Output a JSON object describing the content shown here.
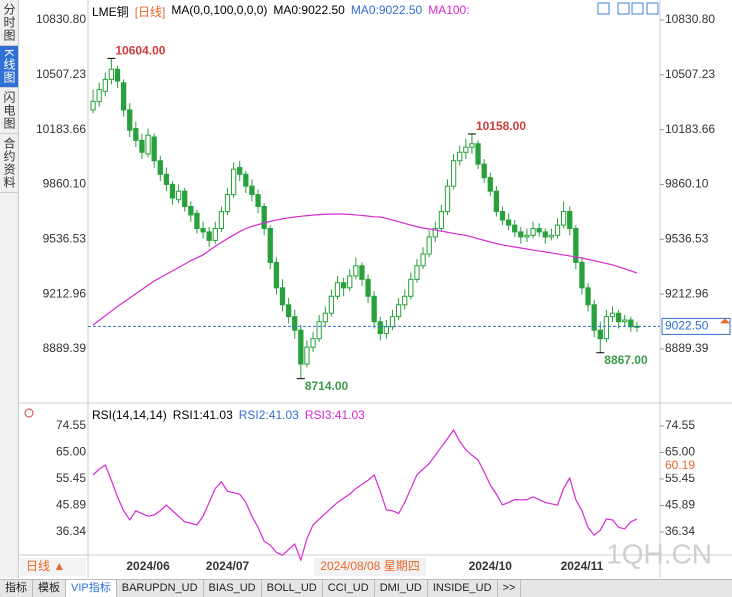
{
  "header": {
    "symbol": "LME铜",
    "period": "[日线]",
    "ma_params": "MA(0,0,100,0,0,0)",
    "ma_a": "MA0:9022.50",
    "ma_b": "MA0:9022.50",
    "ma_c": "MA100:"
  },
  "sidebar": [
    "分时图",
    "K线图",
    "闪电图",
    "合约资料"
  ],
  "chart_data": [
    {
      "type": "candlestick",
      "ylim": [
        8588,
        10919
      ],
      "yticks": [
        {
          "value": 10830.8,
          "label": "10830.80"
        },
        {
          "value": 10507.23,
          "label": "10507.23"
        },
        {
          "value": 10183.66,
          "label": "10183.66"
        },
        {
          "value": 9860.1,
          "label": "9860.10"
        },
        {
          "value": 9536.53,
          "label": "9536.53"
        },
        {
          "value": 9212.96,
          "label": "9212.96"
        },
        {
          "value": 8889.39,
          "label": "8889.39"
        }
      ],
      "up_color": "#28a03c",
      "down_color": "#28a03c",
      "candles": [
        [
          10300,
          10420,
          10280,
          10350
        ],
        [
          10350,
          10460,
          10320,
          10420
        ],
        [
          10410,
          10520,
          10380,
          10480
        ],
        [
          10480,
          10604,
          10450,
          10540
        ],
        [
          10540,
          10560,
          10430,
          10470
        ],
        [
          10460,
          10480,
          10260,
          10300
        ],
        [
          10300,
          10340,
          10140,
          10180
        ],
        [
          10190,
          10230,
          10080,
          10120
        ],
        [
          10120,
          10160,
          10010,
          10050
        ],
        [
          10040,
          10190,
          10020,
          10150
        ],
        [
          10140,
          10160,
          9960,
          10000
        ],
        [
          10000,
          10030,
          9880,
          9920
        ],
        [
          9920,
          9960,
          9820,
          9860
        ],
        [
          9860,
          9880,
          9740,
          9780
        ],
        [
          9770,
          9860,
          9750,
          9820
        ],
        [
          9820,
          9840,
          9700,
          9730
        ],
        [
          9730,
          9760,
          9640,
          9680
        ],
        [
          9690,
          9710,
          9570,
          9600
        ],
        [
          9600,
          9640,
          9540,
          9580
        ],
        [
          9580,
          9610,
          9490,
          9530
        ],
        [
          9530,
          9640,
          9510,
          9600
        ],
        [
          9600,
          9730,
          9580,
          9700
        ],
        [
          9700,
          9840,
          9680,
          9800
        ],
        [
          9800,
          9990,
          9780,
          9950
        ],
        [
          9960,
          10000,
          9880,
          9920
        ],
        [
          9920,
          9940,
          9810,
          9850
        ],
        [
          9850,
          9890,
          9760,
          9800
        ],
        [
          9800,
          9830,
          9690,
          9730
        ],
        [
          9730,
          9750,
          9560,
          9600
        ],
        [
          9600,
          9620,
          9360,
          9400
        ],
        [
          9400,
          9430,
          9210,
          9250
        ],
        [
          9250,
          9300,
          9110,
          9150
        ],
        [
          9150,
          9190,
          9040,
          9080
        ],
        [
          9080,
          9120,
          8950,
          9000
        ],
        [
          9000,
          9030,
          8714,
          8800
        ],
        [
          8800,
          8940,
          8780,
          8900
        ],
        [
          8900,
          8990,
          8870,
          8950
        ],
        [
          8950,
          9090,
          8930,
          9050
        ],
        [
          9050,
          9140,
          9020,
          9100
        ],
        [
          9100,
          9240,
          9080,
          9200
        ],
        [
          9200,
          9320,
          9180,
          9280
        ],
        [
          9280,
          9310,
          9200,
          9250
        ],
        [
          9250,
          9360,
          9230,
          9320
        ],
        [
          9320,
          9430,
          9300,
          9380
        ],
        [
          9380,
          9400,
          9260,
          9300
        ],
        [
          9300,
          9330,
          9160,
          9200
        ],
        [
          9200,
          9230,
          9010,
          9050
        ],
        [
          9050,
          9080,
          8940,
          8980
        ],
        [
          8980,
          9060,
          8950,
          9020
        ],
        [
          9020,
          9120,
          9000,
          9080
        ],
        [
          9080,
          9190,
          9060,
          9150
        ],
        [
          9150,
          9240,
          9120,
          9200
        ],
        [
          9200,
          9340,
          9180,
          9300
        ],
        [
          9300,
          9420,
          9280,
          9380
        ],
        [
          9380,
          9490,
          9360,
          9450
        ],
        [
          9450,
          9590,
          9430,
          9550
        ],
        [
          9550,
          9640,
          9520,
          9600
        ],
        [
          9600,
          9740,
          9580,
          9700
        ],
        [
          9700,
          9890,
          9680,
          9850
        ],
        [
          9850,
          10040,
          9830,
          10000
        ],
        [
          10000,
          10090,
          9970,
          10050
        ],
        [
          10050,
          10130,
          10010,
          10080
        ],
        [
          10080,
          10158,
          10040,
          10100
        ],
        [
          10100,
          10120,
          9950,
          9980
        ],
        [
          9980,
          10010,
          9870,
          9900
        ],
        [
          9900,
          9930,
          9790,
          9820
        ],
        [
          9820,
          9850,
          9670,
          9700
        ],
        [
          9700,
          9730,
          9620,
          9650
        ],
        [
          9650,
          9690,
          9590,
          9620
        ],
        [
          9620,
          9650,
          9550,
          9580
        ],
        [
          9580,
          9610,
          9510,
          9550
        ],
        [
          9550,
          9600,
          9520,
          9560
        ],
        [
          9560,
          9640,
          9540,
          9600
        ],
        [
          9600,
          9630,
          9550,
          9580
        ],
        [
          9580,
          9600,
          9510,
          9550
        ],
        [
          9550,
          9600,
          9530,
          9560
        ],
        [
          9560,
          9660,
          9540,
          9620
        ],
        [
          9620,
          9760,
          9600,
          9700
        ],
        [
          9700,
          9730,
          9560,
          9600
        ],
        [
          9600,
          9620,
          9360,
          9400
        ],
        [
          9400,
          9430,
          9210,
          9250
        ],
        [
          9250,
          9280,
          9110,
          9150
        ],
        [
          9150,
          9180,
          8960,
          9000
        ],
        [
          9000,
          9050,
          8867,
          8950
        ],
        [
          8950,
          9120,
          8930,
          9080
        ],
        [
          9080,
          9140,
          9050,
          9100
        ],
        [
          9100,
          9120,
          9010,
          9050
        ],
        [
          9050,
          9090,
          9020,
          9060
        ],
        [
          9060,
          9080,
          8990,
          9020
        ],
        [
          9020,
          9050,
          8990,
          9022.5
        ]
      ],
      "series": [
        {
          "color": "#d62ad0",
          "values": [
            9030,
            9058,
            9085,
            9112,
            9140,
            9165,
            9190,
            9215,
            9240,
            9265,
            9290,
            9310,
            9330,
            9350,
            9370,
            9390,
            9410,
            9427,
            9444,
            9470,
            9495,
            9518,
            9540,
            9562,
            9582,
            9600,
            9612,
            9623,
            9633,
            9642,
            9650,
            9657,
            9663,
            9668,
            9672,
            9676,
            9679,
            9682,
            9684,
            9685,
            9686,
            9685,
            9683,
            9680,
            9677,
            9673,
            9669,
            9668,
            9660,
            9650,
            9640,
            9630,
            9620,
            9611,
            9603,
            9597,
            9591,
            9585,
            9578,
            9571,
            9565,
            9560,
            9550,
            9540,
            9530,
            9520,
            9511,
            9503,
            9497,
            9491,
            9485,
            9479,
            9473,
            9467,
            9462,
            9456,
            9450,
            9444,
            9438,
            9432,
            9426,
            9418,
            9410,
            9402,
            9394,
            9385,
            9374,
            9362,
            9350,
            9338
          ]
        }
      ],
      "annotations": [
        {
          "text": "10604.00",
          "value": 10604,
          "color": "#d23b3b"
        },
        {
          "text": "10158.00",
          "value": 10158,
          "color": "#d23b3b"
        },
        {
          "text": "8714.00",
          "value": 8714,
          "color": "#3a9a48"
        },
        {
          "text": "8867.00",
          "value": 8867,
          "color": "#3a9a48"
        }
      ],
      "last": {
        "value": 9022.5,
        "label": "9022.50",
        "color": "#2f6fd6"
      }
    },
    {
      "type": "line",
      "title": "RSI(14,14,14)",
      "legend": [
        "RSI1:41.03",
        "RSI2:41.03",
        "RSI3:41.03"
      ],
      "ylim": [
        28.05,
        81.04
      ],
      "yticks": [
        74.55,
        {
          "value": 65,
          "label": "65.00"
        },
        55.45,
        45.89,
        36.34
      ],
      "categories": [
        null,
        null,
        null,
        null,
        null,
        null,
        null,
        null,
        null,
        "2024/06",
        null,
        null,
        null,
        null,
        null,
        null,
        null,
        null,
        null,
        null,
        null,
        null,
        "2024/07",
        null,
        null,
        null,
        null,
        null,
        null,
        null,
        null,
        null,
        null,
        null,
        null,
        null,
        null,
        null,
        null,
        null,
        null,
        null,
        null,
        null,
        null,
        null,
        null,
        null,
        null,
        null,
        null,
        null,
        null,
        null,
        null,
        null,
        null,
        null,
        null,
        null,
        null,
        null,
        null,
        null,
        null,
        "2024/10",
        null,
        null,
        null,
        null,
        null,
        null,
        null,
        null,
        null,
        null,
        null,
        null,
        null,
        null,
        "2024/11",
        null,
        null,
        null,
        null,
        null,
        null,
        null,
        null,
        null
      ],
      "series": [
        {
          "color": "#d62ad0",
          "values": [
            56.9,
            59,
            60.5,
            55,
            49,
            44,
            40.7,
            44,
            43,
            42,
            42.5,
            44,
            46,
            44,
            42,
            40,
            39.5,
            38.9,
            42,
            47,
            52,
            54.4,
            51,
            50.5,
            50,
            47,
            42,
            38,
            33,
            31.6,
            29,
            28,
            30,
            32,
            26.2,
            34,
            38.9,
            41,
            43,
            45,
            47,
            48.5,
            50,
            52,
            53.5,
            55,
            56.9,
            51,
            44.3,
            44,
            43,
            47,
            52,
            57,
            59,
            61,
            64,
            67,
            70,
            73.1,
            69,
            66,
            64,
            62.3,
            58,
            53.3,
            50,
            46.1,
            47,
            48,
            47.9,
            48,
            49,
            48,
            47,
            46.5,
            46,
            52,
            55.8,
            48,
            44,
            38,
            35.2,
            37,
            41,
            40.7,
            38,
            37.5,
            40,
            41.03
          ]
        }
      ],
      "cursor": {
        "label": "2024/08/08 星期四",
        "value": 60.19
      }
    }
  ],
  "footer": {
    "period_button": "日线 ▲",
    "tabs": [
      "指标",
      "模板",
      "VIP指标",
      "BARUPDN_UD",
      "BIAS_UD",
      "BOLL_UD",
      "CCI_UD",
      "DMI_UD",
      "INSIDE_UD",
      ">>"
    ],
    "watermark": "1QH.CN"
  }
}
